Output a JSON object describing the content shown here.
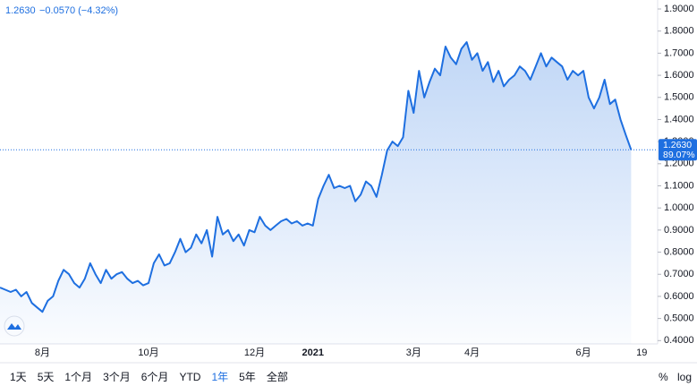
{
  "header": {
    "price": "1.2630",
    "change": "−0.0570 (−4.32%)"
  },
  "chart_data": {
    "type": "area",
    "series": [
      {
        "color": "#1e6fe0",
        "values": [
          0.64,
          0.63,
          0.62,
          0.63,
          0.6,
          0.62,
          0.57,
          0.55,
          0.53,
          0.58,
          0.6,
          0.67,
          0.72,
          0.7,
          0.66,
          0.64,
          0.68,
          0.75,
          0.7,
          0.66,
          0.72,
          0.68,
          0.7,
          0.71,
          0.68,
          0.66,
          0.67,
          0.65,
          0.66,
          0.75,
          0.79,
          0.74,
          0.75,
          0.8,
          0.86,
          0.8,
          0.82,
          0.88,
          0.84,
          0.9,
          0.78,
          0.96,
          0.88,
          0.9,
          0.85,
          0.88,
          0.83,
          0.9,
          0.89,
          0.96,
          0.92,
          0.9,
          0.92,
          0.94,
          0.95,
          0.93,
          0.94,
          0.92,
          0.93,
          0.92,
          1.04,
          1.1,
          1.15,
          1.09,
          1.1,
          1.09,
          1.1,
          1.03,
          1.06,
          1.12,
          1.1,
          1.05,
          1.15,
          1.26,
          1.3,
          1.28,
          1.32,
          1.53,
          1.43,
          1.62,
          1.5,
          1.57,
          1.63,
          1.6,
          1.73,
          1.68,
          1.65,
          1.72,
          1.75,
          1.67,
          1.7,
          1.62,
          1.66,
          1.57,
          1.62,
          1.55,
          1.58,
          1.6,
          1.64,
          1.62,
          1.58,
          1.64,
          1.7,
          1.64,
          1.68,
          1.66,
          1.64,
          1.58,
          1.62,
          1.6,
          1.62,
          1.5,
          1.45,
          1.5,
          1.58,
          1.47,
          1.49,
          1.4,
          1.33,
          1.263
        ]
      }
    ],
    "xlim": [
      0,
      124
    ],
    "xticks": [
      {
        "value": 8,
        "label": "8月"
      },
      {
        "value": 28,
        "label": "10月"
      },
      {
        "value": 48,
        "label": "12月"
      },
      {
        "value": 59,
        "label": "2021"
      },
      {
        "value": 78,
        "label": "3月"
      },
      {
        "value": 89,
        "label": "4月"
      },
      {
        "value": 110,
        "label": "6月"
      },
      {
        "value": 121,
        "label": "19"
      }
    ],
    "ylim": [
      0.385,
      1.9406
    ],
    "yticks": [
      {
        "value": 0.4,
        "label": "0.4000"
      },
      {
        "value": 0.5,
        "label": "0.5000"
      },
      {
        "value": 0.6,
        "label": "0.6000"
      },
      {
        "value": 0.7,
        "label": "0.7000"
      },
      {
        "value": 0.8,
        "label": "0.8000"
      },
      {
        "value": 0.9,
        "label": "0.9000"
      },
      {
        "value": 1.0,
        "label": "1.0000"
      },
      {
        "value": 1.1,
        "label": "1.1000"
      },
      {
        "value": 1.2,
        "label": "1.2000"
      },
      {
        "value": 1.3,
        "label": "1.3000"
      },
      {
        "value": 1.4,
        "label": "1.4000"
      },
      {
        "value": 1.5,
        "label": "1.5000"
      },
      {
        "value": 1.6,
        "label": "1.6000"
      },
      {
        "value": 1.7,
        "label": "1.7000"
      },
      {
        "value": 1.8,
        "label": "1.8000"
      },
      {
        "value": 1.9,
        "label": "1.9000"
      }
    ],
    "last_label": "1.2630",
    "last_change": "89.07%"
  },
  "toolbar": {
    "ranges": [
      "1天",
      "5天",
      "1个月",
      "3个月",
      "6个月",
      "YTD",
      "1年",
      "5年",
      "全部"
    ],
    "active": "1年",
    "options": [
      "%",
      "log"
    ]
  }
}
